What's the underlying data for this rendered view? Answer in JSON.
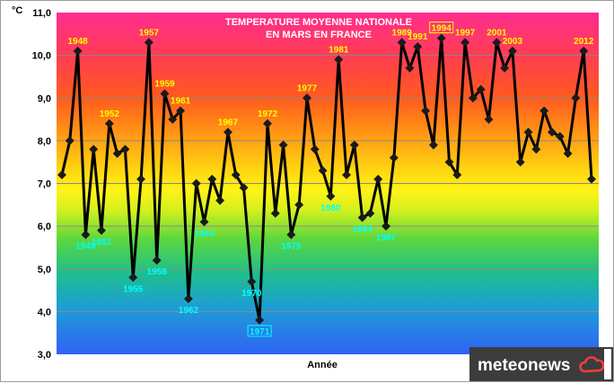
{
  "chart_data": {
    "type": "line",
    "title": "TEMPERATURE MOYENNE NATIONALE",
    "subtitle": "EN MARS EN FRANCE",
    "xlabel": "Année",
    "ylabel": "°C",
    "ylim": [
      3.0,
      11.0
    ],
    "yticks": [
      "3,0",
      "4,0",
      "5,0",
      "6,0",
      "7,0",
      "8,0",
      "9,0",
      "10,0",
      "11,0"
    ],
    "grid": true,
    "series": [
      {
        "x": [
          1946,
          1947,
          1948,
          1949,
          1950,
          1951,
          1952,
          1953,
          1954,
          1955,
          1956,
          1957,
          1958,
          1959,
          1960,
          1961,
          1962,
          1963,
          1964,
          1965,
          1966,
          1967,
          1968,
          1969,
          1970,
          1971,
          1972,
          1973,
          1974,
          1975,
          1976,
          1977,
          1978,
          1979,
          1980,
          1981,
          1982,
          1983,
          1984,
          1985,
          1986,
          1987,
          1988,
          1989,
          1990,
          1991,
          1992,
          1993,
          1994,
          1995,
          1996,
          1997,
          1998,
          1999,
          2000,
          2001,
          2002,
          2003,
          2004,
          2005,
          2006,
          2007,
          2008,
          2009,
          2010,
          2011,
          2012,
          2013
        ],
        "values": [
          7.2,
          8.0,
          10.1,
          5.8,
          7.8,
          5.9,
          8.4,
          7.7,
          7.8,
          4.8,
          7.1,
          10.3,
          5.2,
          9.1,
          8.5,
          8.7,
          4.3,
          7.0,
          6.1,
          7.1,
          6.6,
          8.2,
          7.2,
          6.9,
          4.7,
          3.8,
          8.4,
          6.3,
          7.9,
          5.8,
          6.5,
          9.0,
          7.8,
          7.3,
          6.7,
          9.9,
          7.2,
          7.9,
          6.2,
          6.3,
          7.1,
          6.0,
          7.6,
          10.3,
          9.7,
          10.2,
          8.7,
          7.9,
          10.4,
          7.5,
          7.2,
          10.3,
          9.0,
          9.2,
          8.5,
          10.3,
          9.7,
          10.1,
          7.5,
          8.2,
          7.8,
          8.7,
          8.2,
          8.1,
          7.7,
          9.0,
          10.1,
          7.1
        ]
      }
    ],
    "annotations": [
      {
        "text": "1948",
        "year": 1948,
        "style": "high"
      },
      {
        "text": "1952",
        "year": 1952,
        "style": "high"
      },
      {
        "text": "1957",
        "year": 1957,
        "style": "high"
      },
      {
        "text": "1959",
        "year": 1959,
        "style": "high"
      },
      {
        "text": "1961",
        "year": 1961,
        "style": "high"
      },
      {
        "text": "1967",
        "year": 1967,
        "style": "high"
      },
      {
        "text": "1972",
        "year": 1972,
        "style": "high"
      },
      {
        "text": "1977",
        "year": 1977,
        "style": "high"
      },
      {
        "text": "1981",
        "year": 1981,
        "style": "high"
      },
      {
        "text": "1989",
        "year": 1989,
        "style": "high"
      },
      {
        "text": "1991",
        "year": 1991,
        "style": "high"
      },
      {
        "text": "1994",
        "year": 1994,
        "style": "high-boxed"
      },
      {
        "text": "1997",
        "year": 1997,
        "style": "high"
      },
      {
        "text": "2001",
        "year": 2001,
        "style": "high"
      },
      {
        "text": "2003",
        "year": 2003,
        "style": "high"
      },
      {
        "text": "2012",
        "year": 2012,
        "style": "high"
      },
      {
        "text": "1949",
        "year": 1949,
        "style": "low"
      },
      {
        "text": "1951",
        "year": 1951,
        "style": "low"
      },
      {
        "text": "1955",
        "year": 1955,
        "style": "low"
      },
      {
        "text": "1958",
        "year": 1958,
        "style": "low"
      },
      {
        "text": "1962",
        "year": 1962,
        "style": "low"
      },
      {
        "text": "1964",
        "year": 1964,
        "style": "low"
      },
      {
        "text": "1970",
        "year": 1970,
        "style": "low"
      },
      {
        "text": "1971",
        "year": 1971,
        "style": "low-boxed"
      },
      {
        "text": "1975",
        "year": 1975,
        "style": "low"
      },
      {
        "text": "1980",
        "year": 1980,
        "style": "low-blue"
      },
      {
        "text": "1984",
        "year": 1984,
        "style": "low"
      },
      {
        "text": "1987",
        "year": 1987,
        "style": "low"
      }
    ],
    "colors": {
      "line": "#000000",
      "marker": "#1a1a1a",
      "high_label": "#ffff00",
      "low_label": "#00ffff",
      "blue_label": "#0070c0"
    }
  },
  "logo": {
    "text": "meteonews",
    "icon": "cloud-icon",
    "background": "#3c3c3c",
    "accent": "#ff3c3c"
  }
}
